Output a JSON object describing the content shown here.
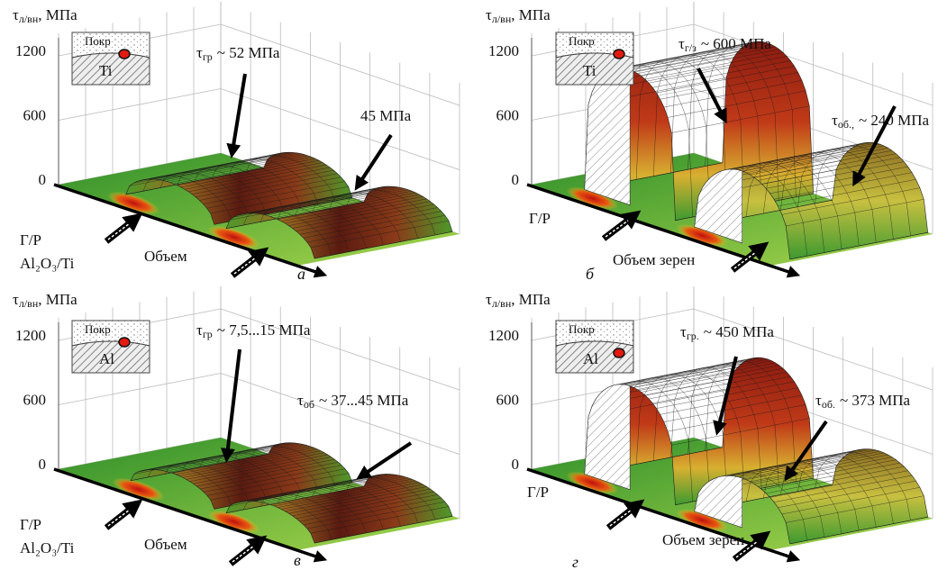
{
  "panels": [
    {
      "y_axis": {
        "symbol": "τ",
        "subscript": "л/вн",
        "unit": ", МПа",
        "ticks": [
          1200,
          600,
          0
        ]
      },
      "inset": {
        "coating": "Покр",
        "substrate": "Ti"
      },
      "annotations": [
        {
          "symbol": "τ",
          "subscript": "гр",
          "text": "~ 52 МПа"
        },
        {
          "text": "45 МПа"
        }
      ],
      "interface": [
        "Г/Р",
        "Al₂O₃/Ti"
      ],
      "x_label": "Объем",
      "letter": "а"
    },
    {
      "y_axis": {
        "symbol": "τ",
        "subscript": "л/вн",
        "unit": ", МПа",
        "ticks": [
          1200,
          600,
          0
        ]
      },
      "inset": {
        "coating": "Покр",
        "substrate": "Ti"
      },
      "annotations": [
        {
          "symbol": "τ",
          "subscript": "г/з",
          "text": "~ 600 МПа"
        },
        {
          "symbol": "τ",
          "subscript": "об.,",
          "text": "~ 240 МПа"
        }
      ],
      "interface": [
        "Г/Р"
      ],
      "x_label": "Объем зерен",
      "letter": "б"
    },
    {
      "y_axis": {
        "symbol": "τ",
        "subscript": "л/вн",
        "unit": ", МПа",
        "ticks": [
          1200,
          600,
          0
        ]
      },
      "inset": {
        "coating": "Покр",
        "substrate": "Al"
      },
      "annotations": [
        {
          "symbol": "τ",
          "subscript": "гр",
          "text": "~ 7,5...15 МПа"
        },
        {
          "symbol": "τ",
          "subscript": "об",
          "text": "~ 37...45 МПа"
        }
      ],
      "interface": [
        "Г/Р",
        "Al₂O₃/Ti"
      ],
      "x_label": "Объем",
      "letter": "в"
    },
    {
      "y_axis": {
        "symbol": "τ",
        "subscript": "л/вн",
        "unit": ", МПа",
        "ticks": [
          1200,
          600,
          0
        ]
      },
      "inset": {
        "coating": "Покр",
        "substrate": "Al"
      },
      "annotations": [
        {
          "symbol": "τ",
          "subscript": "гр.",
          "text": "~ 450 МПа"
        },
        {
          "symbol": "τ",
          "subscript": "об.",
          "text": "~ 373 МПа"
        }
      ],
      "interface": [
        "Г/Р"
      ],
      "x_label": "Объем зерен",
      "letter": "г"
    }
  ]
}
